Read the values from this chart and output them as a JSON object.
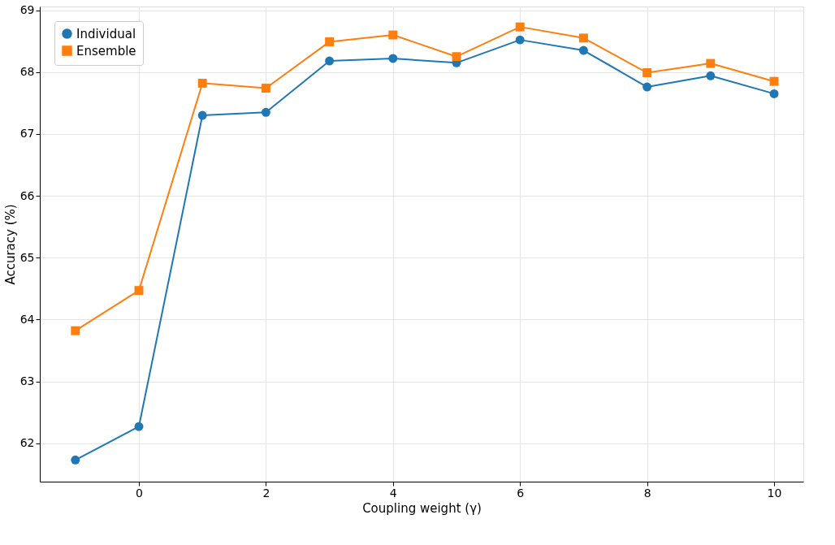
{
  "chart_data": {
    "type": "line",
    "xlabel": "Coupling weight (γ)",
    "ylabel": "Accuracy (%)",
    "x": [
      -1,
      0,
      1,
      2,
      3,
      4,
      5,
      6,
      7,
      8,
      9,
      10
    ],
    "series": [
      {
        "name": "Individual",
        "color": "#1f77b4",
        "marker": "circle",
        "values": [
          61.73,
          62.27,
          67.3,
          67.35,
          68.18,
          68.22,
          68.15,
          68.52,
          68.35,
          67.76,
          67.94,
          67.65
        ]
      },
      {
        "name": "Ensemble",
        "color": "#ff7f0e",
        "marker": "square",
        "values": [
          63.82,
          64.47,
          67.82,
          67.74,
          68.49,
          68.6,
          68.25,
          68.73,
          68.55,
          67.99,
          68.14,
          67.85
        ]
      }
    ],
    "xlim": [
      -1.56,
      10.46
    ],
    "ylim": [
      61.38,
      69.06
    ],
    "xticks": [
      0,
      2,
      4,
      6,
      8,
      10
    ],
    "yticks": [
      62,
      63,
      64,
      65,
      66,
      67,
      68,
      69
    ],
    "grid": true,
    "legend": "top left",
    "line_style": "solid"
  }
}
